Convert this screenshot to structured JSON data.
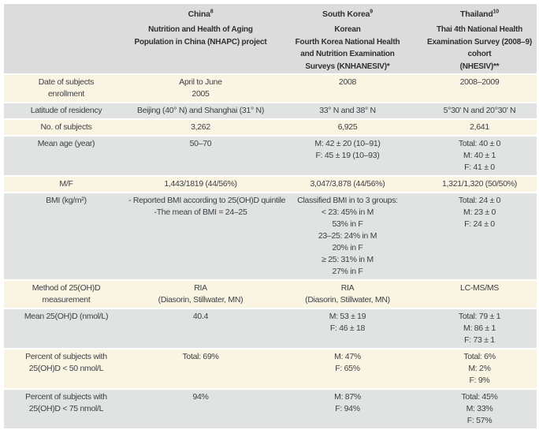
{
  "colors": {
    "page_bg": "#ffffff",
    "header_bg": "#dcdcdc",
    "row_gray": "#e1e2e2",
    "row_cream": "#faf4e3",
    "header_text": "#2d3033",
    "body_text": "#3d4145"
  },
  "table": {
    "columns": [
      {
        "country": "",
        "sup": "",
        "subtitle": []
      },
      {
        "country": "China",
        "sup": "8",
        "subtitle": [
          "Nutrition and Health of Aging",
          "Population in China (NHAPC) project"
        ]
      },
      {
        "country": "South Korea",
        "sup": "9",
        "subtitle": [
          "Korean",
          "Fourth Korea National Health",
          "and Nutrition Examination",
          "Surveys (KNHANESIV)*"
        ]
      },
      {
        "country": "Thailand",
        "sup": "10",
        "subtitle": [
          "Thai 4th National Health",
          "Examination Survey (2008–9)",
          "cohort",
          "(NHESIV)**"
        ]
      }
    ],
    "rows": [
      {
        "label": [
          "Date of subjects",
          "enrollment"
        ],
        "china": [
          "April to June",
          "2005"
        ],
        "south_korea": [
          "2008"
        ],
        "thailand": [
          "2008–2009"
        ]
      },
      {
        "label": [
          "Latitude of residency"
        ],
        "china": [
          "Beijing (40° N) and Shanghai (31° N)"
        ],
        "south_korea": [
          "33° N and 38° N"
        ],
        "thailand": [
          "5°30' N and 20°30' N"
        ]
      },
      {
        "label": [
          "No. of subjects"
        ],
        "china": [
          "3,262"
        ],
        "south_korea": [
          "6,925"
        ],
        "thailand": [
          "2,641"
        ]
      },
      {
        "label": [
          "Mean age (year)"
        ],
        "china": [
          "50–70"
        ],
        "south_korea": [
          "M: 42 ± 20 (10–91)",
          "F: 45 ± 19 (10–93)"
        ],
        "thailand": [
          "Total: 40 ± 0",
          "M: 40 ± 1",
          "F: 41 ± 0"
        ]
      },
      {
        "label": [
          "M/F"
        ],
        "china": [
          "1,443/1819 (44/56%)"
        ],
        "south_korea": [
          "3,047/3,878 (44/56%)"
        ],
        "thailand": [
          "1,321/1,320 (50/50%)"
        ]
      },
      {
        "label": [
          "BMI (kg/m²)"
        ],
        "china": [
          "- Reported BMI according to 25(OH)D quintile",
          "-The mean of BMI = 24–25"
        ],
        "south_korea": [
          "Classified BMI in to 3 groups:",
          "< 23: 45% in M",
          "53% in F",
          "23–25: 24% in M",
          "20% in F",
          "≥ 25: 31% in M",
          "27% in F"
        ],
        "thailand": [
          "Total: 24 ± 0",
          "M: 23 ± 0",
          "F: 24 ± 0"
        ]
      },
      {
        "label": [
          "Method of 25(OH)D",
          "measurement"
        ],
        "china": [
          "RIA",
          "(Diasorin, Stillwater, MN)"
        ],
        "south_korea": [
          "RIA",
          "(Diasorin, Stillwater, MN)"
        ],
        "thailand": [
          "LC-MS/MS"
        ]
      },
      {
        "label": [
          "Mean 25(OH)D (nmol/L)"
        ],
        "china": [
          "40.4"
        ],
        "south_korea": [
          "M: 53 ± 19",
          "F: 46 ± 18"
        ],
        "thailand": [
          "Total: 79 ± 1",
          "M: 86 ± 1",
          "F: 73 ± 1"
        ]
      },
      {
        "label": [
          "Percent of subjects with",
          "25(OH)D < 50 nmol/L"
        ],
        "china": [
          "Total: 69%"
        ],
        "south_korea": [
          "M: 47%",
          "F: 65%"
        ],
        "thailand": [
          "Total: 6%",
          "M: 2%",
          "F: 9%"
        ]
      },
      {
        "label": [
          "Percent of subjects with",
          "25(OH)D < 75 nmol/L"
        ],
        "china": [
          "94%"
        ],
        "south_korea": [
          "M: 87%",
          "F: 94%"
        ],
        "thailand": [
          "Total: 45%",
          "M: 33%",
          "F: 57%"
        ]
      }
    ]
  }
}
